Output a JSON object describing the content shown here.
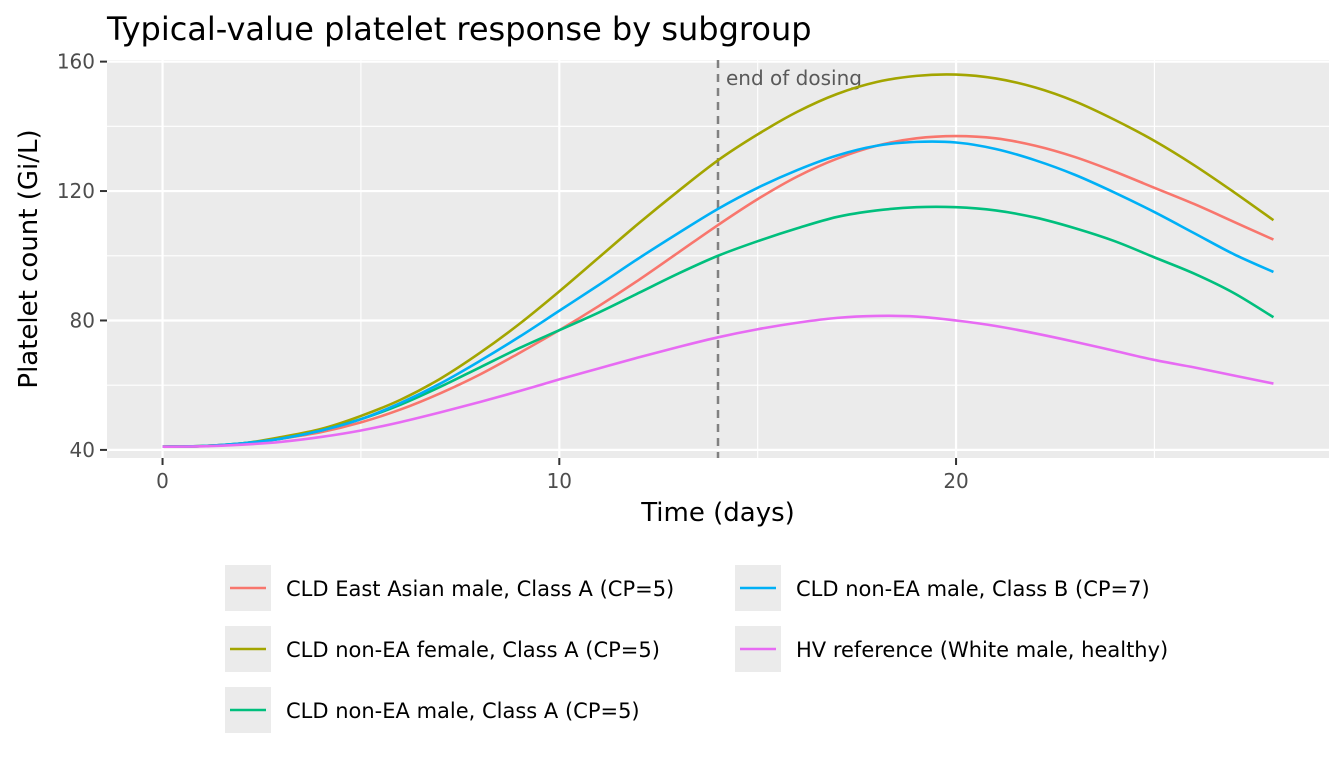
{
  "chart_data": {
    "type": "line",
    "title": "Typical-value platelet response by subgroup",
    "xlabel": "Time (days)",
    "ylabel": "Platelet count (Gi/L)",
    "xlim": [
      -1.4,
      29.4
    ],
    "ylim": [
      37.5,
      160.5
    ],
    "x_ticks": [
      0,
      10,
      20
    ],
    "x_tick_labels": [
      "0",
      "10",
      "20"
    ],
    "y_ticks": [
      40,
      80,
      120,
      160
    ],
    "y_tick_labels": [
      "40",
      "80",
      "120",
      "160"
    ],
    "grid": true,
    "legend_position": "bottom",
    "annotation": {
      "x": 14,
      "label": "end of dosing",
      "style": "dashed vertical line"
    },
    "x": [
      0,
      1,
      2,
      3,
      4,
      5,
      6,
      7,
      8,
      9,
      10,
      11,
      12,
      13,
      14,
      15,
      16,
      17,
      18,
      19,
      20,
      21,
      22,
      23,
      24,
      25,
      26,
      27,
      28
    ],
    "series": [
      {
        "name": "CLD East Asian male, Class A (CP=5)",
        "color": "#F8766D",
        "values": [
          41,
          41.2,
          42,
          43.5,
          45.5,
          48.5,
          52.5,
          57.5,
          63.3,
          70,
          77,
          84.5,
          92.5,
          101,
          109.5,
          117.5,
          124.5,
          130,
          134,
          136.3,
          137,
          136.3,
          134,
          130.5,
          126,
          121,
          116,
          110.5,
          105
        ]
      },
      {
        "name": "CLD non-EA female, Class A (CP=5)",
        "color": "#A3A500",
        "values": [
          41,
          41.2,
          42,
          44,
          46.5,
          50.5,
          55.5,
          62,
          70,
          79,
          89,
          99.5,
          110,
          120,
          129.5,
          137.5,
          144.5,
          150,
          153.7,
          155.6,
          156,
          154.8,
          152,
          147.7,
          142,
          135.5,
          128,
          119.7,
          111
        ]
      },
      {
        "name": "CLD non-EA male, Class A (CP=5)",
        "color": "#00BF7D",
        "values": [
          41,
          41.2,
          42,
          43.5,
          46,
          49.5,
          54,
          59.5,
          65.5,
          71.5,
          77,
          82.5,
          88.5,
          94.5,
          100,
          104.5,
          108.5,
          112,
          114,
          115,
          115,
          114,
          111.8,
          108.5,
          104.5,
          99.5,
          94.5,
          88.5,
          81
        ]
      },
      {
        "name": "CLD non-EA male, Class B (CP=7)",
        "color": "#00B0F6",
        "values": [
          41,
          41.2,
          42,
          43.5,
          46,
          49.5,
          54.5,
          60.5,
          67.5,
          75,
          83,
          91,
          99.2,
          107,
          114.5,
          121,
          126.5,
          131,
          134,
          135.2,
          135,
          133,
          129.5,
          125,
          119.5,
          113.5,
          107,
          100.5,
          95
        ]
      },
      {
        "name": "HV reference (White male, healthy)",
        "color": "#E76BF3",
        "values": [
          41,
          41.1,
          41.6,
          42.5,
          44,
          46,
          48.6,
          51.6,
          54.8,
          58.2,
          61.8,
          65.2,
          68.6,
          71.8,
          74.8,
          77.3,
          79.3,
          80.8,
          81.4,
          81.2,
          80,
          78.3,
          76,
          73.4,
          70.6,
          67.8,
          65.5,
          63,
          60.5
        ]
      }
    ]
  }
}
